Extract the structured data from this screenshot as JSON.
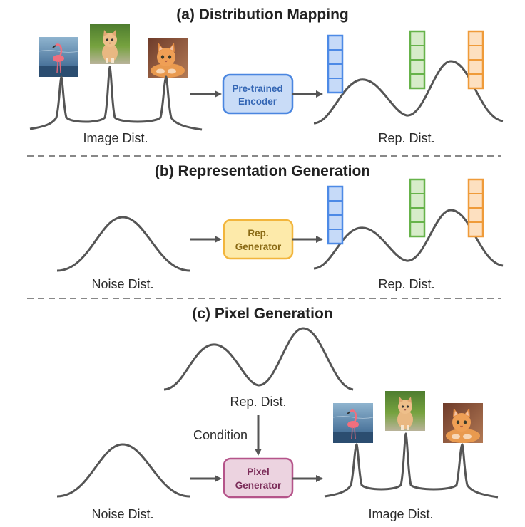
{
  "sections": {
    "a": {
      "title": "(a) Distribution Mapping",
      "left_label": "Image Dist.",
      "box_line1": "Pre-trained",
      "box_line2": "Encoder",
      "right_label": "Rep. Dist."
    },
    "b": {
      "title": "(b) Representation Generation",
      "left_label": "Noise Dist.",
      "box_line1": "Rep.",
      "box_line2": "Generator",
      "right_label": "Rep. Dist."
    },
    "c": {
      "title": "(c) Pixel Generation",
      "top_label": "Rep. Dist.",
      "condition_label": "Condition",
      "left_label": "Noise Dist.",
      "box_line1": "Pixel",
      "box_line2": "Generator",
      "right_label": "Image Dist."
    }
  },
  "colors": {
    "encoder_fill": "#c9dcf7",
    "encoder_stroke": "#4a86e0",
    "rep_gen_fill": "#fdeaaa",
    "rep_gen_stroke": "#f2b53c",
    "pixel_gen_fill": "#ecd3e0",
    "pixel_gen_stroke": "#b5548a",
    "token_blue": "#4d8ae6",
    "token_blue_fill": "#c6daf8",
    "token_green": "#67b34a",
    "token_green_fill": "#d7ecc9",
    "token_orange": "#ef9b3a",
    "token_orange_fill": "#fde0c0"
  },
  "images": [
    "flamingo-photo",
    "kitten-standing-photo",
    "kitten-lying-photo"
  ]
}
